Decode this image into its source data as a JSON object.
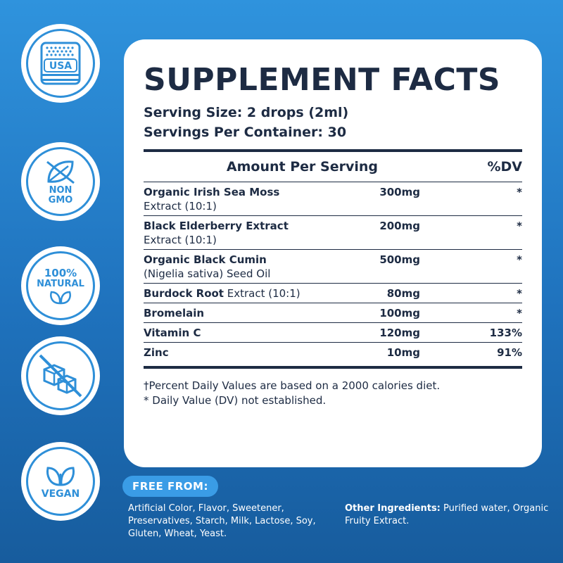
{
  "badges": [
    {
      "icon": "usa-flag-icon",
      "label": "USA"
    },
    {
      "icon": "leaf-icon",
      "label_lines": [
        "NON",
        "GMO"
      ]
    },
    {
      "icon": "natural-leaves-icon",
      "label_lines": [
        "100%",
        "NATURAL"
      ]
    },
    {
      "icon": "no-sugar-cubes-icon",
      "label": ""
    },
    {
      "icon": "vegan-leaves-icon",
      "label": "VEGAN"
    }
  ],
  "card": {
    "title": "SUPPLEMENT FACTS",
    "serving_size": "Serving Size: 2 drops (2ml)",
    "servings_per_container": "Servings Per Container: 30",
    "header_amount": "Amount Per Serving",
    "header_dv": "%DV",
    "rows": [
      {
        "name_bold": "Organic Irish Sea Moss",
        "name_rest": "Extract (10:1)",
        "amount": "300mg",
        "dv": "*"
      },
      {
        "name_bold": "Black Elderberry Extract",
        "name_rest": "Extract (10:1)",
        "amount": "200mg",
        "dv": "*"
      },
      {
        "name_bold": "Organic Black Cumin",
        "name_rest": "(Nigelia sativa) Seed Oil",
        "amount": "500mg",
        "dv": "*"
      },
      {
        "name_bold": "Burdock Root",
        "name_inline": " Extract (10:1)",
        "amount": "80mg",
        "dv": "*"
      },
      {
        "name_bold": "Bromelain",
        "amount": "100mg",
        "dv": "*"
      },
      {
        "name_bold": "Vitamin C",
        "amount": "120mg",
        "dv": "133%"
      },
      {
        "name_bold": "Zinc",
        "amount": "10mg",
        "dv": "91%"
      }
    ],
    "footnote_1": "†Percent Daily Values are based on a 2000 calories diet.",
    "footnote_2": "* Daily Value (DV) not established."
  },
  "free_from": {
    "label": "FREE FROM:",
    "text": "Artificial Color, Flavor, Sweetener, Preservatives, Starch, Milk, Lactose, Soy, Gluten, Wheat, Yeast."
  },
  "other_ingredients": {
    "label": "Other Ingredients:",
    "text": " Purified water, Organic Fruity Extract."
  },
  "colors": {
    "background_top": "#2f93dd",
    "background_bottom": "#175c9d",
    "badge_accent": "#2e8fd8",
    "text_dark": "#1d2b43",
    "pill": "#3a9ce6"
  }
}
